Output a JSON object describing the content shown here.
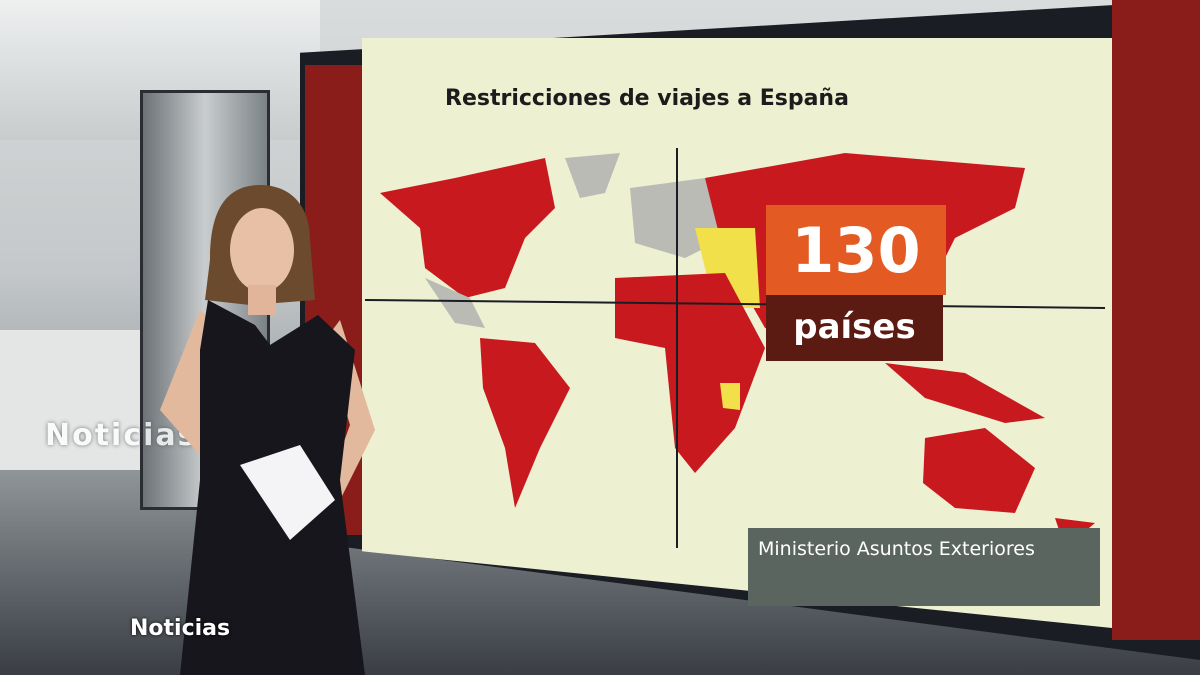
{
  "graphic": {
    "title": "Restricciones de viajes a España",
    "count": "130",
    "count_label": "países",
    "source": "Ministerio Asuntos Exteriores"
  },
  "colors": {
    "restricted": "#c8191e",
    "partial": "#f2e04a",
    "none": "#b9bbb4",
    "background": "#eef0d2",
    "count_box": "#e35a22",
    "label_box": "#5b1a12"
  },
  "watermark": {
    "text": "Noticias"
  },
  "studio_logo": {
    "text": "Noticias"
  }
}
